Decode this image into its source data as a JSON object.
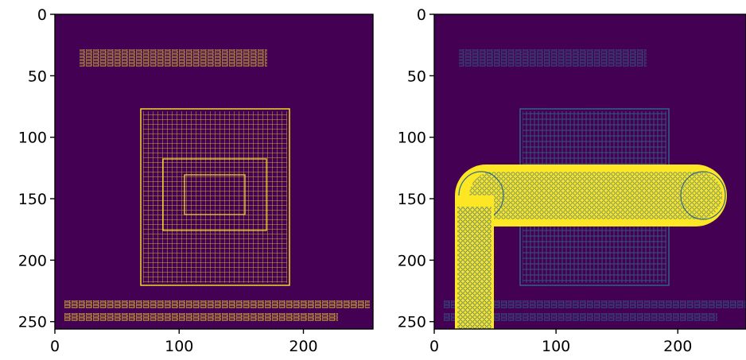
{
  "chart_data": [
    {
      "type": "heatmap",
      "title": "",
      "xlabel": "",
      "ylabel": "",
      "xlim": [
        0,
        256
      ],
      "ylim": [
        256,
        0
      ],
      "x_ticks": [
        "0",
        "100",
        "200"
      ],
      "x_tick_values": [
        0,
        100,
        200
      ],
      "y_ticks": [
        "0",
        "50",
        "100",
        "150",
        "200",
        "250"
      ],
      "y_tick_values": [
        0,
        50,
        100,
        150,
        200,
        250
      ],
      "colormap": [
        "#440154",
        "#fde725"
      ],
      "content": "edge map (binary) of a document page: header text band, central seal/pattern block, bottom text lines"
    },
    {
      "type": "heatmap",
      "title": "",
      "xlabel": "",
      "ylabel": "",
      "xlim": [
        0,
        256
      ],
      "ylim": [
        256,
        0
      ],
      "x_ticks": [
        "0",
        "100",
        "200"
      ],
      "x_tick_values": [
        0,
        100,
        200
      ],
      "y_ticks": [
        "0",
        "50",
        "100",
        "150",
        "200",
        "250"
      ],
      "y_tick_values": [
        0,
        50,
        100,
        150,
        200,
        250
      ],
      "colormap": [
        "#440154",
        "#31688e",
        "#fde725"
      ],
      "content": "same edge map with an L-shaped high-intensity overlay (horizontal capsule and vertical band)"
    }
  ],
  "figure": {
    "background": "#ffffff",
    "low_color": "#440154",
    "edge_color": "#fde725",
    "dim_edge_color": "#31688e"
  }
}
